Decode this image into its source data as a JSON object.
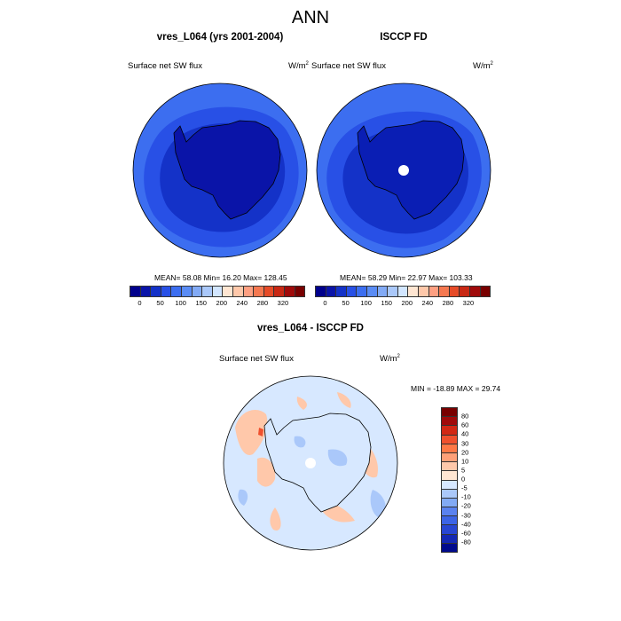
{
  "page": {
    "title": "ANN"
  },
  "panels": [
    {
      "title": "vres_L064 (yrs 2001-2004)",
      "left_label": "Surface net SW flux",
      "unit_base": "W/m",
      "unit_exp": "2",
      "stats": "MEAN=  58.08  Min=  16.20  Max= 128.45"
    },
    {
      "title": "ISCCP FD",
      "left_label": "Surface net SW flux",
      "unit_base": "W/m",
      "unit_exp": "2",
      "stats": "MEAN=  58.29  Min=  22.97  Max= 103.33"
    }
  ],
  "diff_panel": {
    "title": "vres_L064 - ISCCP FD",
    "left_label": "Surface net SW flux",
    "unit_base": "W/m",
    "unit_exp": "2",
    "minmax": "MIN = -18.89 MAX =  29.74"
  },
  "colorbar_abs": {
    "colors": [
      "#00008c",
      "#0a14a8",
      "#1432c8",
      "#2850e6",
      "#3c6ef0",
      "#5a8cf5",
      "#82aaf5",
      "#aac8fa",
      "#d2e6ff",
      "#ffe6d2",
      "#ffc8aa",
      "#ffa082",
      "#f57850",
      "#e64b28",
      "#c82814",
      "#a00a0a",
      "#780000"
    ],
    "tick_labels": [
      "0",
      "50",
      "100",
      "150",
      "200",
      "240",
      "280",
      "320"
    ]
  },
  "colorbar_diff": {
    "colors": [
      "#780000",
      "#a00a0a",
      "#d22814",
      "#f0502d",
      "#ff7846",
      "#ffa078",
      "#ffc8aa",
      "#ffe6d2",
      "#d7e8ff",
      "#aac8fa",
      "#82aaf5",
      "#5a82f0",
      "#3c64e6",
      "#2846d2",
      "#1428b4",
      "#000a8c"
    ],
    "tick_labels": [
      "80",
      "60",
      "40",
      "30",
      "20",
      "10",
      "5",
      "0",
      "-5",
      "-10",
      "-20",
      "-30",
      "-40",
      "-60",
      "-80"
    ]
  },
  "map_colors": {
    "ocean_outer": "#3c6ef0",
    "ocean_mid": "#2850e6",
    "ocean_inner": "#1432c8",
    "land_model": "#0a14a8",
    "land_obs": "#0a1eb4",
    "diff_base": "#d7e8ff",
    "diff_light": "#aac8fa",
    "diff_pos": "#ffc8aa",
    "diff_pos_strong": "#f0502d",
    "pole_hole": "#ffffff"
  }
}
